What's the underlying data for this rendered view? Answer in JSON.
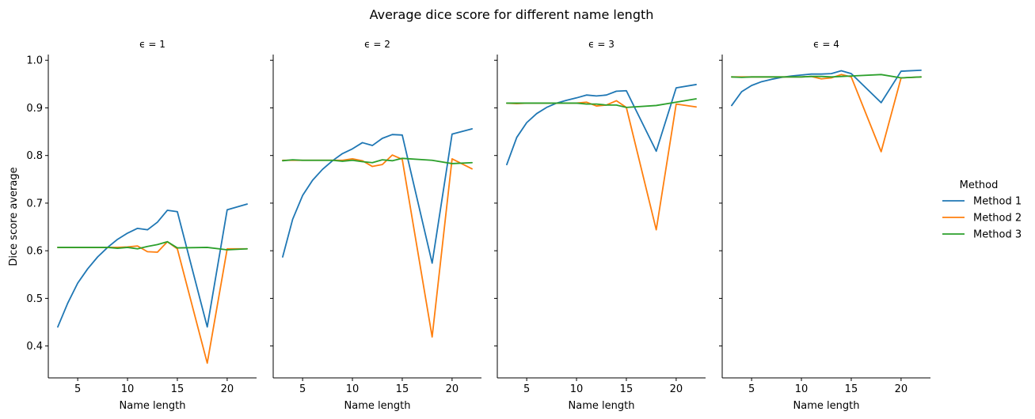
{
  "chart_data": {
    "type": "line",
    "title": "Average dice score for different name length",
    "ylabel": "Dice score average",
    "xlabel": "Name length",
    "ylim": [
      0.333,
      1.012
    ],
    "xlim": [
      2.05,
      22.95
    ],
    "xticks": [
      5,
      10,
      15,
      20
    ],
    "yticks": [
      0.4,
      0.5,
      0.6,
      0.7,
      0.8,
      0.9,
      1.0
    ],
    "ytick_labels": [
      "0.4",
      "0.5",
      "0.6",
      "0.7",
      "0.8",
      "0.9",
      "1.0"
    ],
    "legend": {
      "title": "Method",
      "placement": "right"
    },
    "colors": {
      "Method 1": "#1f77b4",
      "Method 2": "#ff7f0e",
      "Method 3": "#2ca02c"
    },
    "x": [
      3,
      4,
      5,
      6,
      7,
      8,
      9,
      10,
      11,
      12,
      13,
      14,
      15,
      18,
      20,
      22
    ],
    "facets": [
      {
        "label": "ϵ = 1",
        "series": [
          {
            "name": "Method 1",
            "values": [
              0.44,
              0.49,
              0.532,
              0.562,
              0.587,
              0.607,
              0.624,
              0.637,
              0.647,
              0.644,
              0.66,
              0.685,
              0.682,
              0.44,
              0.686,
              0.698
            ]
          },
          {
            "name": "Method 2",
            "values": [
              0.607,
              0.607,
              0.607,
              0.607,
              0.607,
              0.607,
              0.607,
              0.608,
              0.61,
              0.598,
              0.597,
              0.619,
              0.604,
              0.364,
              0.604,
              0.604
            ]
          },
          {
            "name": "Method 3",
            "values": [
              0.607,
              0.607,
              0.607,
              0.607,
              0.607,
              0.607,
              0.605,
              0.607,
              0.604,
              0.609,
              0.613,
              0.619,
              0.606,
              0.607,
              0.602,
              0.604
            ]
          }
        ]
      },
      {
        "label": "ϵ = 2",
        "series": [
          {
            "name": "Method 1",
            "values": [
              0.587,
              0.666,
              0.716,
              0.748,
              0.771,
              0.789,
              0.804,
              0.814,
              0.827,
              0.821,
              0.836,
              0.844,
              0.843,
              0.574,
              0.845,
              0.856
            ]
          },
          {
            "name": "Method 2",
            "values": [
              0.79,
              0.79,
              0.79,
              0.79,
              0.79,
              0.79,
              0.79,
              0.793,
              0.789,
              0.777,
              0.781,
              0.801,
              0.792,
              0.419,
              0.793,
              0.772
            ]
          },
          {
            "name": "Method 3",
            "values": [
              0.789,
              0.791,
              0.79,
              0.79,
              0.79,
              0.79,
              0.788,
              0.79,
              0.787,
              0.785,
              0.791,
              0.789,
              0.794,
              0.79,
              0.783,
              0.785
            ]
          }
        ]
      },
      {
        "label": "ϵ = 3",
        "series": [
          {
            "name": "Method 1",
            "values": [
              0.781,
              0.838,
              0.869,
              0.888,
              0.901,
              0.91,
              0.916,
              0.921,
              0.927,
              0.925,
              0.927,
              0.935,
              0.936,
              0.809,
              0.942,
              0.949
            ]
          },
          {
            "name": "Method 2",
            "values": [
              0.91,
              0.909,
              0.91,
              0.91,
              0.91,
              0.91,
              0.91,
              0.91,
              0.912,
              0.904,
              0.906,
              0.915,
              0.901,
              0.644,
              0.908,
              0.902
            ]
          },
          {
            "name": "Method 3",
            "values": [
              0.91,
              0.91,
              0.91,
              0.91,
              0.91,
              0.91,
              0.91,
              0.91,
              0.908,
              0.908,
              0.906,
              0.906,
              0.901,
              0.905,
              0.912,
              0.919
            ]
          }
        ]
      },
      {
        "label": "ϵ = 4",
        "series": [
          {
            "name": "Method 1",
            "values": [
              0.905,
              0.934,
              0.947,
              0.955,
              0.96,
              0.964,
              0.967,
              0.969,
              0.971,
              0.971,
              0.972,
              0.978,
              0.972,
              0.911,
              0.977,
              0.979
            ]
          },
          {
            "name": "Method 2",
            "values": [
              0.965,
              0.965,
              0.965,
              0.965,
              0.965,
              0.965,
              0.965,
              0.965,
              0.966,
              0.961,
              0.963,
              0.97,
              0.965,
              0.808,
              0.963,
              0.965
            ]
          },
          {
            "name": "Method 3",
            "values": [
              0.965,
              0.964,
              0.965,
              0.965,
              0.965,
              0.965,
              0.965,
              0.965,
              0.966,
              0.966,
              0.965,
              0.966,
              0.967,
              0.97,
              0.963,
              0.965
            ]
          }
        ]
      }
    ]
  }
}
